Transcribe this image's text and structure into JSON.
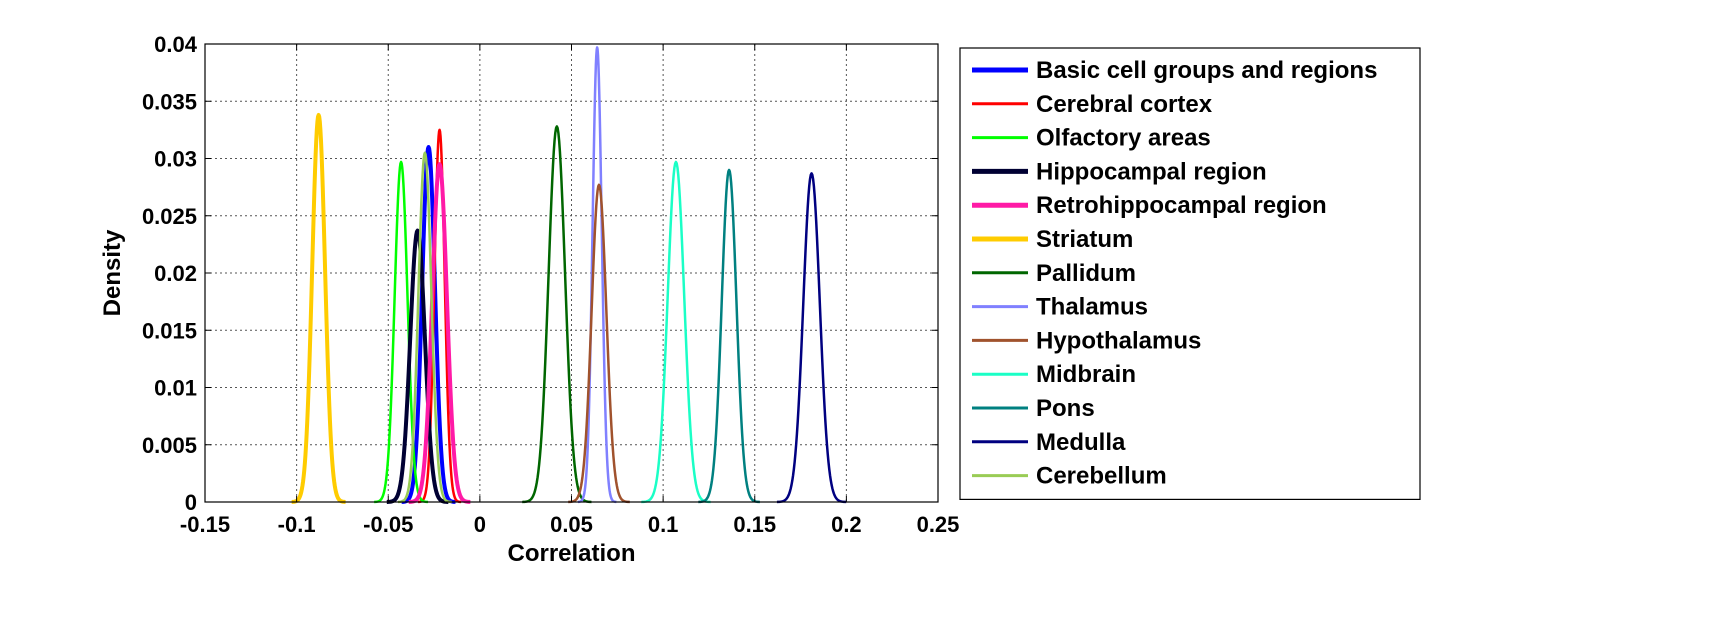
{
  "chart_data": {
    "type": "line",
    "title": "",
    "xlabel": "Correlation",
    "ylabel": "Density",
    "xlim": [
      -0.15,
      0.25
    ],
    "ylim": [
      0,
      0.04
    ],
    "xticks": [
      -0.15,
      -0.1,
      -0.05,
      0,
      0.05,
      0.1,
      0.15,
      0.2,
      0.25
    ],
    "xtick_labels": [
      "-0.15",
      "-0.1",
      "-0.05",
      "0",
      "0.05",
      "0.1",
      "0.15",
      "0.2",
      "0.25"
    ],
    "yticks": [
      0,
      0.005,
      0.01,
      0.015,
      0.02,
      0.025,
      0.03,
      0.035,
      0.04
    ],
    "ytick_labels": [
      "0",
      "0.005",
      "0.01",
      "0.015",
      "0.02",
      "0.025",
      "0.03",
      "0.035",
      "0.04"
    ],
    "grid": true,
    "legend_position": "outside-right",
    "series": [
      {
        "name": "Basic cell groups and regions",
        "color": "#0000ff",
        "bold": true,
        "center": -0.028,
        "peak": 0.031,
        "width": 0.0035
      },
      {
        "name": "Cerebral cortex",
        "color": "#ff0000",
        "bold": false,
        "center": -0.022,
        "peak": 0.0325,
        "width": 0.0028
      },
      {
        "name": "Olfactory areas",
        "color": "#00ff00",
        "bold": false,
        "center": -0.043,
        "peak": 0.0297,
        "width": 0.0035
      },
      {
        "name": "Hippocampal region",
        "color": "#000033",
        "bold": true,
        "center": -0.034,
        "peak": 0.0237,
        "width": 0.004
      },
      {
        "name": "Retrohippocampal region",
        "color": "#ff1aa6",
        "bold": true,
        "center": -0.022,
        "peak": 0.0295,
        "width": 0.004
      },
      {
        "name": "Striatum",
        "color": "#ffcc00",
        "bold": true,
        "center": -0.088,
        "peak": 0.0338,
        "width": 0.0035
      },
      {
        "name": "Pallidum",
        "color": "#006600",
        "bold": false,
        "center": 0.042,
        "peak": 0.0328,
        "width": 0.0045
      },
      {
        "name": "Thalamus",
        "color": "#8080ff",
        "bold": false,
        "center": 0.064,
        "peak": 0.0397,
        "width": 0.0025
      },
      {
        "name": "Hypothalamus",
        "color": "#a0522d",
        "bold": false,
        "center": 0.065,
        "peak": 0.0277,
        "width": 0.004
      },
      {
        "name": "Midbrain",
        "color": "#1affc6",
        "bold": false,
        "center": 0.107,
        "peak": 0.0297,
        "width": 0.0045
      },
      {
        "name": "Pons",
        "color": "#008080",
        "bold": false,
        "center": 0.136,
        "peak": 0.029,
        "width": 0.004
      },
      {
        "name": "Medulla",
        "color": "#000080",
        "bold": false,
        "center": 0.181,
        "peak": 0.0287,
        "width": 0.0045
      },
      {
        "name": "Cerebellum",
        "color": "#99cc55",
        "bold": false,
        "center": -0.03,
        "peak": 0.0305,
        "width": 0.0035
      }
    ]
  }
}
